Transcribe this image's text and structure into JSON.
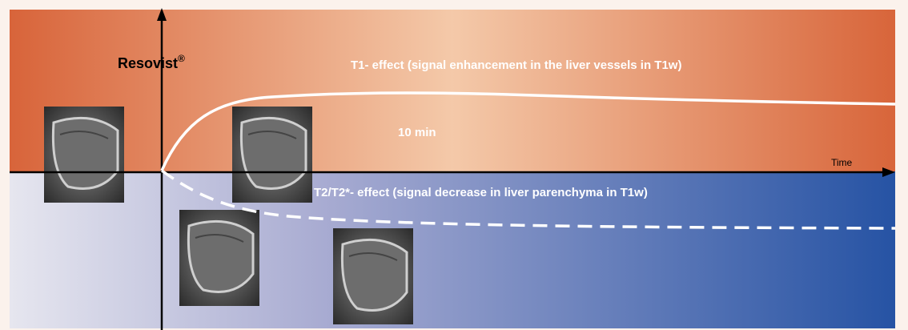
{
  "agent": {
    "name": "Resovist",
    "mark": "®"
  },
  "t1_effect": "T1- effect (signal enhancement in the liver vessels in T1w)",
  "time_point": "10 min",
  "axis_label": "Time",
  "t2_effect": "T2/T2*- effect (signal decrease in liver parenchyma in T1w)"
}
